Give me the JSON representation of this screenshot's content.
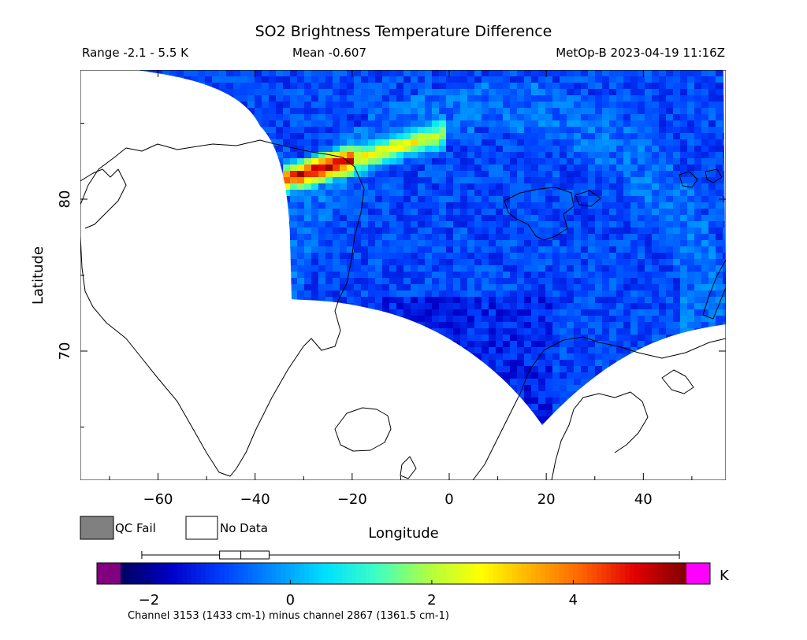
{
  "header": {
    "title": "SO2 Brightness Temperature Difference",
    "range": "Range -2.1 - 5.5 K",
    "mean": "Mean -0.607",
    "satellite_time": "MetOp-B 2023-04-19 11:16Z"
  },
  "legend": {
    "qc_fail_label": "QC Fail",
    "no_data_label": "No Data",
    "qc_fail_color": "#808080",
    "no_data_color": "#ffffff"
  },
  "colorbar": {
    "unit": "K",
    "range": [
      -2.4,
      5.6
    ],
    "ticks": [
      -2,
      0,
      2,
      4
    ],
    "tick_labels": [
      "−2",
      "0",
      "2",
      "4"
    ],
    "under_color": "#800080",
    "over_color": "#ff00ff",
    "stops": [
      "#000060",
      "#0000c8",
      "#0040ff",
      "#0090ff",
      "#00e0ff",
      "#40ffc0",
      "#b0ff40",
      "#ffff00",
      "#ffb000",
      "#ff6000",
      "#e00000",
      "#800000"
    ],
    "boxplot": {
      "whisker_low": -2.1,
      "q1": -1.0,
      "median": -0.7,
      "q3": -0.3,
      "whisker_high": 5.5
    }
  },
  "footer": {
    "note": "Channel 3153 (1433 cm-1) minus channel 2867 (1361.5 cm-1)"
  },
  "chart_data": {
    "type": "heatmap",
    "title": "SO2 Brightness Temperature Difference",
    "xlabel": "Longitude",
    "ylabel": "Latitude",
    "xlim": [
      -76,
      57
    ],
    "ylim": [
      61.5,
      88.5
    ],
    "x_ticks": [
      -60,
      -40,
      -20,
      0,
      20,
      40
    ],
    "x_tick_labels": [
      "−60",
      "−40",
      "−20",
      "0",
      "20",
      "40"
    ],
    "y_ticks": [
      70,
      80
    ],
    "y_tick_labels": [
      "70",
      "80"
    ],
    "value_range": [
      -2.1,
      5.5
    ],
    "mean": -0.607,
    "features": [
      {
        "name": "SO2 plume",
        "lon": [
          -34,
          -5
        ],
        "lat": [
          81,
          83.5
        ],
        "peak_value": 5.4
      }
    ]
  }
}
